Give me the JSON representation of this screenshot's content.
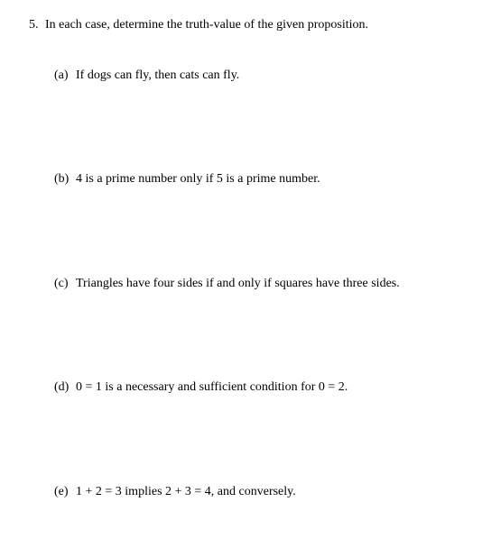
{
  "question": {
    "number": "5.",
    "prompt": "In each case, determine the truth-value of the given proposition."
  },
  "items": {
    "a": {
      "label": "(a)",
      "text": "If dogs can fly, then cats can fly."
    },
    "b": {
      "label": "(b)",
      "text": "4 is a prime number only if 5 is a prime number."
    },
    "c": {
      "label": "(c)",
      "text": "Triangles have four sides if and only if squares have three sides."
    },
    "d": {
      "label": "(d)",
      "text": "0 = 1 is a necessary and sufficient condition for 0 = 2."
    },
    "e": {
      "label": "(e)",
      "text": "1 + 2 = 3 implies 2 + 3 = 4, and conversely."
    }
  }
}
